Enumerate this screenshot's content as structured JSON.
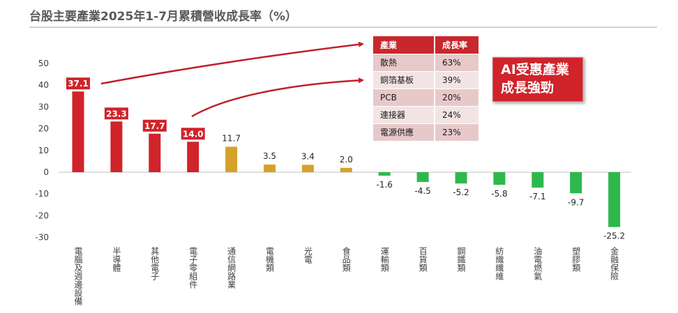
{
  "chart_data": {
    "type": "bar",
    "title": "台股主要產業2025年1-7月累積營收成長率（%）",
    "categories": [
      "電腦及週邊設備",
      "半導體",
      "其他電子",
      "電子零組件",
      "通信網路業",
      "電機類",
      "光電",
      "食品類",
      "運輸類",
      "百貨類",
      "鋼鐵類",
      "紡織纖維",
      "油電燃氣",
      "塑膠類",
      "金融保險"
    ],
    "values": [
      37.1,
      23.3,
      17.7,
      14.0,
      11.7,
      3.5,
      3.4,
      2.0,
      -1.6,
      -4.5,
      -5.2,
      -5.8,
      -7.1,
      -9.7,
      -25.2
    ],
    "value_labels": [
      "37.1",
      "23.3",
      "17.7",
      "14.0",
      "11.7",
      "3.5",
      "3.4",
      "2.0",
      "-1.6",
      "-4.5",
      "-5.2",
      "-5.8",
      "-7.1",
      "-9.7",
      "-25.2"
    ],
    "highlighted": [
      true,
      true,
      true,
      true,
      false,
      false,
      false,
      false,
      false,
      false,
      false,
      false,
      false,
      false,
      false
    ],
    "yticks": [
      "50",
      "40",
      "30",
      "20",
      "10",
      "0",
      "-10",
      "-20",
      "-30"
    ],
    "ylim": [
      -30,
      50
    ],
    "colors": {
      "highlight": "#d0232a",
      "positive": "#d6a12a",
      "negative": "#2db84c"
    }
  },
  "table": {
    "headers": [
      "產業",
      "成長率"
    ],
    "rows": [
      [
        "散熱",
        "63%"
      ],
      [
        "銅箔基板",
        "39%"
      ],
      [
        "PCB",
        "20%"
      ],
      [
        "連接器",
        "24%"
      ],
      [
        "電源供應",
        "23%"
      ]
    ]
  },
  "callout": {
    "line1": "AI受惠產業",
    "line2": "成長強勁"
  },
  "colors": {
    "header_red": "#c8282d",
    "row_a": "#e8c9c9",
    "row_b": "#f3e4e4"
  }
}
